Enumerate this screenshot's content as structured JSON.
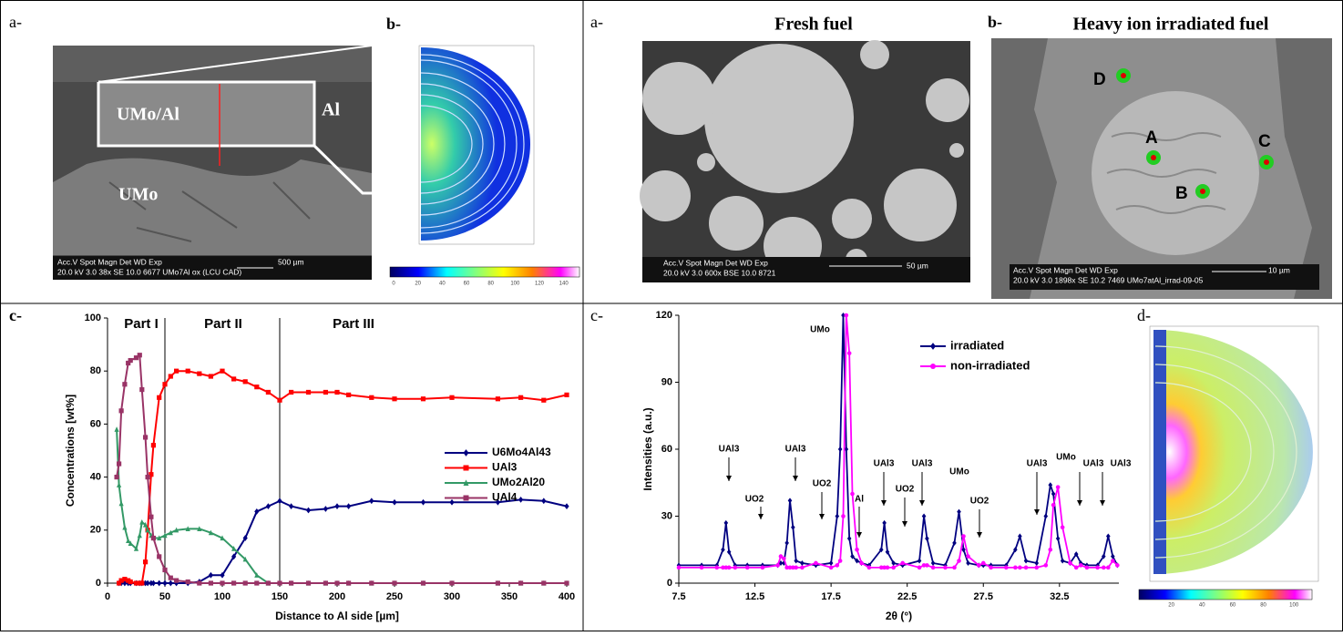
{
  "left": {
    "a_label": "a-",
    "b_label": "b-",
    "c_label": "c-",
    "image_a": {
      "labels": [
        "UMo/Al",
        "Al",
        "UMo"
      ],
      "info": [
        "Acc.V  Spot Magn    Det  WD   Exp",
        "20.0 kV 3.0   38x      SE  10.0  6677  UMo7Al ox (LCU CAD)"
      ],
      "scale": "500 µm"
    },
    "colorbar_b": [
      0,
      20,
      40,
      60,
      80,
      100,
      120,
      140
    ]
  },
  "right": {
    "a_label": "a-",
    "b_label": "b-",
    "c_label": "c-",
    "d_label": "d-",
    "a_title": "Fresh fuel",
    "b_title": "Heavy ion irradiated fuel",
    "image_a": {
      "info": [
        "Acc.V  Spot Magn    Det  WD   Exp",
        "20.0 kV 3.0  600x     BSE 10.0  8721"
      ],
      "scale": "50 µm"
    },
    "image_b": {
      "points": [
        "D",
        "A",
        "C",
        "B"
      ],
      "info": [
        "Acc.V  Spot Magn    Det  WD   Exp",
        "20.0 kV 3.0  1898x    SE  10.2  7469   UMo7atAl_irrad-09-05"
      ],
      "scale": "10 µm"
    },
    "colorbar_d": [
      20,
      40,
      60,
      80,
      100
    ]
  },
  "chart_data": [
    {
      "type": "line",
      "x_label": "Distance to Al side [µm]",
      "y_label": "Concentrations [wt%]",
      "annotations": [
        "Part I",
        "Part II",
        "Part III"
      ],
      "vlines": [
        50,
        150
      ],
      "x": [
        8,
        10,
        12,
        15,
        18,
        20,
        25,
        28,
        30,
        33,
        35,
        38,
        40,
        45,
        50,
        55,
        60,
        70,
        80,
        90,
        100,
        110,
        120,
        130,
        140,
        150,
        160,
        175,
        190,
        200,
        210,
        230,
        250,
        275,
        300,
        340,
        360,
        380,
        400
      ],
      "series": [
        {
          "name": "U6Mo4Al43",
          "color": "#000080",
          "marker": "diamond",
          "values": [
            null,
            0,
            0,
            0,
            0,
            0,
            0,
            0,
            0,
            0,
            0,
            0,
            0,
            0,
            0,
            0,
            0,
            0,
            0.5,
            3,
            3,
            10,
            17,
            27,
            29,
            31,
            29,
            27.5,
            28,
            29,
            29,
            31,
            30.5,
            30.5,
            30.5,
            30.5,
            31.5,
            31,
            29
          ]
        },
        {
          "name": "UAl3",
          "color": "#ff0000",
          "marker": "square",
          "values": [
            null,
            0,
            1,
            1.5,
            1,
            0.5,
            0,
            0,
            0,
            8,
            20,
            41,
            52,
            70,
            75,
            78,
            80,
            80,
            79,
            78,
            80,
            77,
            76,
            74,
            72,
            69,
            72,
            72,
            72,
            72,
            71,
            70,
            69.5,
            69.5,
            70,
            69.5,
            70,
            69,
            71
          ]
        },
        {
          "name": "UMo2Al20",
          "color": "#339966",
          "marker": "triangle",
          "values": [
            58,
            37,
            30,
            21,
            16,
            15,
            13,
            18,
            23,
            22,
            20,
            18,
            17,
            17,
            18,
            19,
            20,
            20.5,
            20.5,
            19,
            17,
            13,
            9,
            3,
            0,
            0,
            0,
            0,
            0,
            0,
            0,
            0,
            0,
            0,
            0,
            0,
            0,
            0,
            0
          ]
        },
        {
          "name": "UAl4",
          "color": "#993366",
          "marker": "square",
          "values": [
            40,
            45,
            65,
            75,
            83,
            84,
            85,
            86,
            73,
            55,
            40,
            25,
            17,
            10,
            5,
            2,
            1,
            0.5,
            0,
            0,
            0,
            0,
            0,
            0,
            0,
            0,
            0,
            0,
            0,
            0,
            0,
            0,
            0,
            0,
            0,
            0,
            0,
            0,
            0
          ]
        }
      ],
      "xlim": [
        0,
        400
      ],
      "ylim": [
        0,
        100
      ],
      "xticks": [
        0,
        50,
        100,
        150,
        200,
        250,
        300,
        350,
        400
      ],
      "yticks": [
        0,
        20,
        40,
        60,
        80,
        100
      ],
      "legend": "right"
    },
    {
      "type": "line",
      "x_label": "2θ (°)",
      "y_label": "Intensities (a.u.)",
      "annotations": [
        "UMo",
        "UAl3",
        "UAl3",
        "UO2",
        "UO2",
        "Al",
        "UAl3",
        "UO2",
        "UAl3",
        "UMo",
        "UO2",
        "UAl3",
        "UMo",
        "UAl3",
        "UAl3"
      ],
      "x": [
        7.5,
        9,
        10,
        10.4,
        10.6,
        10.8,
        11.2,
        12,
        13,
        14,
        14.2,
        14.4,
        14.6,
        14.8,
        15.0,
        15.2,
        15.6,
        16.5,
        17.5,
        17.9,
        18.1,
        18.3,
        18.5,
        18.7,
        18.9,
        19.2,
        19.5,
        20,
        20.8,
        21.0,
        21.2,
        21.6,
        22.2,
        23.3,
        23.6,
        23.8,
        24.2,
        25,
        25.6,
        25.9,
        26.2,
        26.5,
        27.2,
        27.5,
        28,
        29,
        29.6,
        29.9,
        30.3,
        31,
        31.6,
        31.9,
        32.1,
        32.4,
        32.7,
        33.2,
        33.6,
        33.9,
        34.3,
        35,
        35.4,
        35.7,
        36,
        36.3
      ],
      "series": [
        {
          "name": "irradiated",
          "color": "#000080",
          "marker": "diamond",
          "values": [
            8,
            8,
            8,
            15,
            27,
            14,
            8,
            8,
            8,
            8,
            9,
            9,
            18,
            37,
            25,
            10,
            9,
            8,
            9,
            30,
            60,
            120,
            60,
            20,
            12,
            10,
            9,
            8,
            15,
            27,
            14,
            9,
            8,
            10,
            30,
            20,
            9,
            8,
            18,
            32,
            15,
            9,
            8,
            8,
            8,
            8,
            15,
            21,
            10,
            9,
            30,
            44,
            40,
            20,
            10,
            9,
            13,
            9,
            8,
            8,
            12,
            21,
            12,
            8
          ]
        },
        {
          "name": "non-irradiated",
          "color": "#ff00ff",
          "marker": "circle",
          "values": [
            7,
            7,
            7,
            7,
            7,
            7,
            7,
            7,
            7,
            8,
            12,
            11,
            7,
            7,
            7,
            7,
            7,
            9,
            7,
            8,
            10,
            30,
            120,
            103,
            40,
            15,
            9,
            7,
            7,
            7,
            7,
            7,
            9,
            7,
            8,
            8,
            7,
            7,
            7,
            10,
            21,
            12,
            8,
            9,
            7,
            7,
            7,
            7,
            7,
            7,
            8,
            15,
            35,
            43,
            25,
            9,
            7,
            8,
            7,
            7,
            7,
            7,
            10,
            8
          ]
        }
      ],
      "xlim": [
        7.5,
        36.4
      ],
      "ylim": [
        0,
        120
      ],
      "xticks": [
        7.5,
        12.5,
        17.5,
        22.5,
        27.5,
        32.5
      ],
      "yticks": [
        0,
        30,
        60,
        90,
        120
      ],
      "legend": "upper right"
    }
  ]
}
